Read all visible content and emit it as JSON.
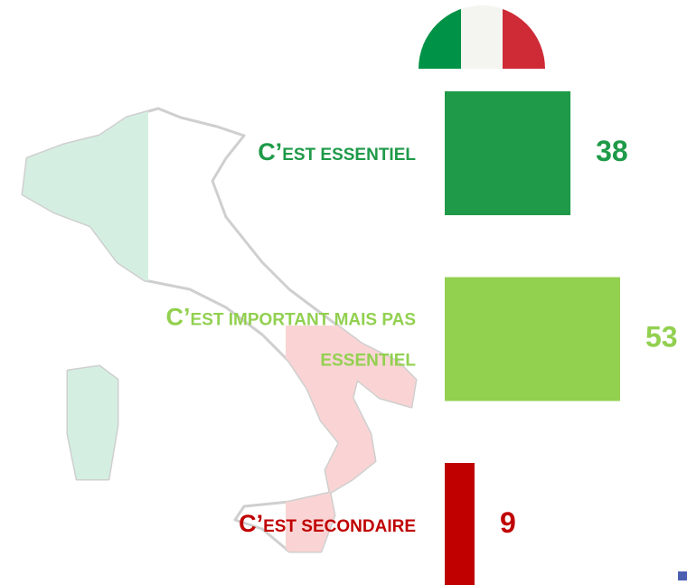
{
  "chart_data": {
    "type": "bar",
    "categories": [
      "C’EST ESSENTIEL",
      "C’EST IMPORTANT MAIS PAS ESSENTIEL",
      "C’EST SECONDAIRE"
    ],
    "values": [
      38,
      53,
      9
    ],
    "colors": [
      "#1e9a48",
      "#92d050",
      "#c00000"
    ]
  }
}
